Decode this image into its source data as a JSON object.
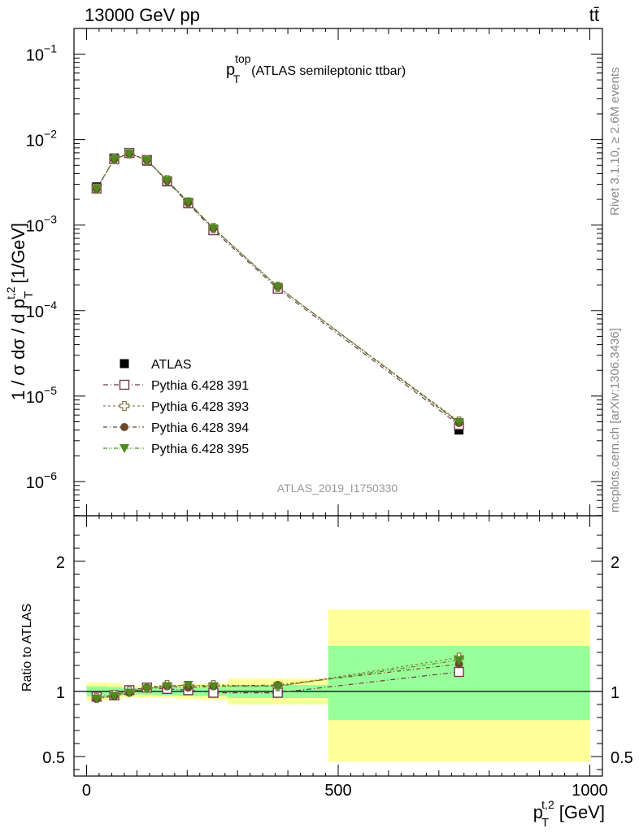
{
  "header": {
    "energy_label": "13000 GeV pp",
    "process_label": "tt̄"
  },
  "side_labels": {
    "rivet": "Rivet 3.1.10, ≥ 2.6M events",
    "mcplots": "mcplots.cern.ch [arXiv:1306.3436]"
  },
  "chart_data": {
    "type": "scatter",
    "title_main": "p",
    "title_sup": "top",
    "title_sub": "T",
    "title_rest": "(ATLAS semileptonic ttbar)",
    "analysis_id": "ATLAS_2019_I1750330",
    "ylabel": "1 / σ dσ / d p",
    "ylabel_sub": "T",
    "ylabel_sup": "t,2",
    "ylabel_unit": "[1/GeV]",
    "ratio_ylabel": "Ratio to ATLAS",
    "xlabel_main": "p",
    "xlabel_sub": "T",
    "xlabel_sup": "t,2",
    "xlabel_unit": "[GeV]",
    "xlim": [
      -25,
      1025
    ],
    "main_ylog_range": [
      -6.4,
      -0.7
    ],
    "ratio_ylim": [
      0.35,
      2.35
    ],
    "x_ticks": [
      {
        "value": 0,
        "label": "0"
      },
      {
        "value": 500,
        "label": "500"
      },
      {
        "value": 1000,
        "label": "1000"
      }
    ],
    "main_y_ticks": [
      {
        "exp": -1,
        "base": "10",
        "power": "−1"
      },
      {
        "exp": -2,
        "base": "10",
        "power": "−2"
      },
      {
        "exp": -3,
        "base": "10",
        "power": "−3"
      },
      {
        "exp": -4,
        "base": "10",
        "power": "−4"
      },
      {
        "exp": -5,
        "base": "10",
        "power": "−5"
      },
      {
        "exp": -6,
        "base": "10",
        "power": "−6"
      }
    ],
    "ratio_y_ticks": [
      {
        "value": 0.5,
        "label": "0.5"
      },
      {
        "value": 1,
        "label": "1"
      },
      {
        "value": 2,
        "label": "2"
      }
    ],
    "bins": [
      [
        0,
        40
      ],
      [
        40,
        70
      ],
      [
        70,
        100
      ],
      [
        100,
        140
      ],
      [
        140,
        180
      ],
      [
        180,
        225
      ],
      [
        225,
        280
      ],
      [
        280,
        480
      ],
      [
        480,
        1000
      ]
    ],
    "x": [
      20,
      55,
      85,
      120,
      160,
      202,
      252,
      380,
      740
    ],
    "data": {
      "name": "ATLAS",
      "color": "#000000",
      "values": [
        0.0028,
        0.0061,
        0.0069,
        0.0056,
        0.0032,
        0.00178,
        0.00088,
        0.000182,
        4e-06
      ],
      "band_inner": [
        [
          0.96,
          1.04
        ],
        [
          0.965,
          1.035
        ],
        [
          0.975,
          1.025
        ],
        [
          0.975,
          1.025
        ],
        [
          0.97,
          1.03
        ],
        [
          0.965,
          1.035
        ],
        [
          0.965,
          1.035
        ],
        [
          0.95,
          1.05
        ],
        [
          0.78,
          1.35
        ]
      ],
      "band_outer": [
        [
          0.93,
          1.07
        ],
        [
          0.935,
          1.065
        ],
        [
          0.955,
          1.045
        ],
        [
          0.955,
          1.045
        ],
        [
          0.95,
          1.05
        ],
        [
          0.94,
          1.06
        ],
        [
          0.935,
          1.065
        ],
        [
          0.9,
          1.1
        ],
        [
          0.46,
          1.63
        ]
      ]
    },
    "series": [
      {
        "name": "Pythia 6.428 391",
        "color": "#6b3a4e",
        "marker": "open-square",
        "dash": "6,3,1,3",
        "ratio": [
          0.96,
          0.97,
          1.01,
          1.03,
          1.02,
          1.01,
          0.99,
          0.99,
          1.15
        ],
        "ratio_err": [
          0.01,
          0.01,
          0.01,
          0.01,
          0.01,
          0.01,
          0.01,
          0.012,
          0.03
        ]
      },
      {
        "name": "Pythia 6.428 393",
        "color": "#8a7d4a",
        "marker": "open-cross",
        "dash": "3,3",
        "ratio": [
          0.95,
          0.975,
          1.0,
          1.03,
          1.05,
          1.04,
          1.05,
          1.04,
          1.26
        ],
        "ratio_err": [
          0.01,
          0.01,
          0.01,
          0.01,
          0.01,
          0.01,
          0.01,
          0.012,
          0.03
        ]
      },
      {
        "name": "Pythia 6.428 394",
        "color": "#6b4a2e",
        "marker": "filled-circle",
        "dash": "5,3,1,3",
        "ratio": [
          0.945,
          0.965,
          0.99,
          1.03,
          1.04,
          1.03,
          1.04,
          1.05,
          1.21
        ],
        "ratio_err": [
          0.01,
          0.01,
          0.01,
          0.01,
          0.01,
          0.01,
          0.01,
          0.012,
          0.03
        ]
      },
      {
        "name": "Pythia 6.428 395",
        "color": "#4e8a1e",
        "marker": "filled-triangle-down",
        "dash": "5,2,1,2,1,2",
        "ratio": [
          0.945,
          0.965,
          0.99,
          1.02,
          1.04,
          1.05,
          1.04,
          1.04,
          1.24
        ],
        "ratio_err": [
          0.01,
          0.01,
          0.01,
          0.01,
          0.01,
          0.01,
          0.01,
          0.012,
          0.03
        ]
      }
    ],
    "colors": {
      "band_inner": "#99ff99",
      "band_outer": "#ffff99",
      "reference_line": "#000000"
    }
  }
}
